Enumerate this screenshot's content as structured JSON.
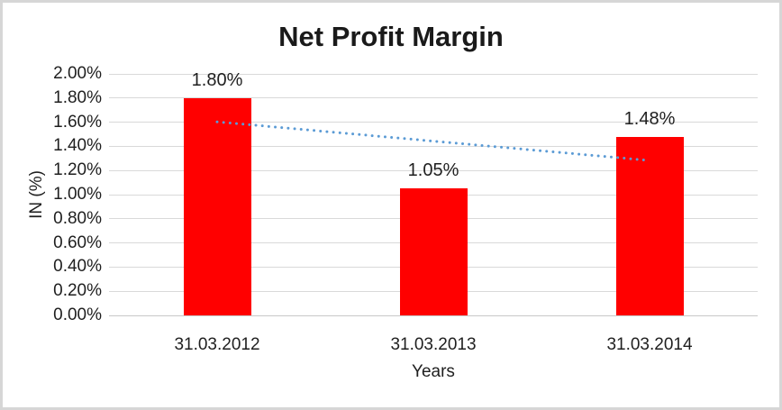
{
  "window": {
    "background": "#ffffff",
    "frame_border_color": "#d6d6d6"
  },
  "chart_data": {
    "type": "bar",
    "title": "Net Profit Margin",
    "categories": [
      "31.03.2012",
      "31.03.2013",
      "31.03.2014"
    ],
    "series": [
      {
        "name": "Net Profit Margin",
        "values": [
          1.8,
          1.05,
          1.48
        ]
      }
    ],
    "data_labels": [
      "1.80%",
      "1.05%",
      "1.48%"
    ],
    "xlabel": "Years",
    "ylabel": "IN (%)",
    "ylim": [
      0,
      2.0
    ],
    "ytick_step": 0.2,
    "ytick_labels": [
      "2.00%",
      "1.80%",
      "1.60%",
      "1.40%",
      "1.20%",
      "1.00%",
      "0.80%",
      "0.60%",
      "0.40%",
      "0.20%",
      "0.00%"
    ],
    "grid": true,
    "legend": "none",
    "bar_color": "#ff0000",
    "gridline_color": "#d9d9d9",
    "axis_line_color": "#c8c8c8",
    "text_color": "#1f1f1f",
    "title_color": "#1a1a1a",
    "trendline": {
      "type": "linear",
      "style": "dotted",
      "color": "#5b9bd5",
      "start": {
        "category": "31.03.2012",
        "value": 1.603
      },
      "end": {
        "category": "31.03.2014",
        "value": 1.283
      }
    }
  }
}
